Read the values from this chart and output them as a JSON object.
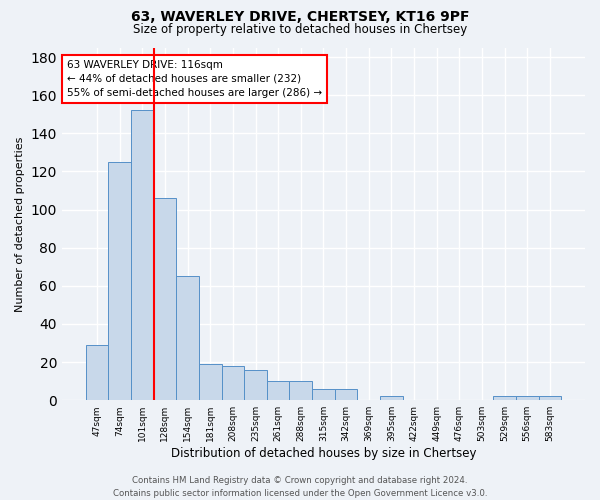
{
  "title1": "63, WAVERLEY DRIVE, CHERTSEY, KT16 9PF",
  "title2": "Size of property relative to detached houses in Chertsey",
  "xlabel": "Distribution of detached houses by size in Chertsey",
  "ylabel": "Number of detached properties",
  "categories": [
    "47sqm",
    "74sqm",
    "101sqm",
    "128sqm",
    "154sqm",
    "181sqm",
    "208sqm",
    "235sqm",
    "261sqm",
    "288sqm",
    "315sqm",
    "342sqm",
    "369sqm",
    "395sqm",
    "422sqm",
    "449sqm",
    "476sqm",
    "503sqm",
    "529sqm",
    "556sqm",
    "583sqm"
  ],
  "values": [
    29,
    125,
    152,
    106,
    65,
    19,
    18,
    16,
    10,
    10,
    6,
    6,
    0,
    2,
    0,
    0,
    0,
    0,
    2,
    2,
    2
  ],
  "bar_color": "#c8d8ea",
  "bar_edge_color": "#5590c8",
  "property_line_x": 2.5,
  "annotation_line1": "63 WAVERLEY DRIVE: 116sqm",
  "annotation_line2": "← 44% of detached houses are smaller (232)",
  "annotation_line3": "55% of semi-detached houses are larger (286) →",
  "ylim": [
    0,
    185
  ],
  "yticks": [
    0,
    20,
    40,
    60,
    80,
    100,
    120,
    140,
    160,
    180
  ],
  "background_color": "#eef2f7",
  "grid_color": "#ffffff",
  "footer": "Contains HM Land Registry data © Crown copyright and database right 2024.\nContains public sector information licensed under the Open Government Licence v3.0."
}
